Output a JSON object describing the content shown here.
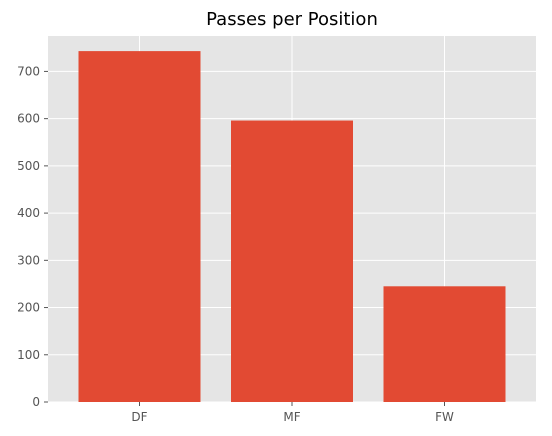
{
  "chart_data": {
    "type": "bar",
    "title": "Passes per Position",
    "xlabel": "",
    "ylabel": "",
    "categories": [
      "DF",
      "MF",
      "FW"
    ],
    "values": [
      743,
      596,
      245
    ],
    "ylim": [
      0,
      775
    ],
    "yticks": [
      0,
      100,
      200,
      300,
      400,
      500,
      600,
      700
    ],
    "grid": true,
    "legend": "none",
    "colors": {
      "bar": "#e24a33",
      "plot_background": "#e5e5e5",
      "grid": "#ffffff"
    }
  }
}
